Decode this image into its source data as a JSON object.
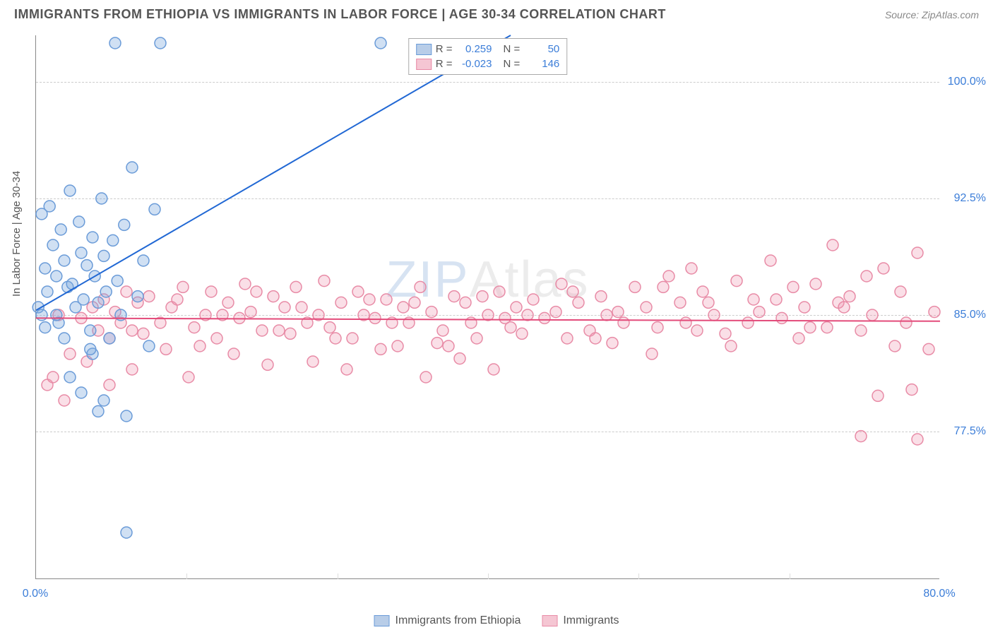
{
  "header": {
    "title": "IMMIGRANTS FROM ETHIOPIA VS IMMIGRANTS IN LABOR FORCE | AGE 30-34 CORRELATION CHART",
    "source": "Source: ZipAtlas.com"
  },
  "chart": {
    "type": "scatter",
    "ylabel": "In Labor Force | Age 30-34",
    "watermark_zip": "ZIP",
    "watermark_atlas": "Atlas",
    "background_color": "#ffffff",
    "grid_color": "#cccccc",
    "axis_color": "#888888",
    "xlim": [
      0,
      80
    ],
    "ylim": [
      68,
      103
    ],
    "xticks": [
      {
        "v": 0,
        "label": "0.0%"
      },
      {
        "v": 80,
        "label": "80.0%"
      }
    ],
    "xticks_minor": [
      13.3,
      26.7,
      40,
      53.3,
      66.7
    ],
    "yticks": [
      {
        "v": 77.5,
        "label": "77.5%"
      },
      {
        "v": 85.0,
        "label": "85.0%"
      },
      {
        "v": 92.5,
        "label": "92.5%"
      },
      {
        "v": 100.0,
        "label": "100.0%"
      }
    ],
    "series": [
      {
        "name": "Immigrants from Ethiopia",
        "color_fill": "rgba(120,165,220,0.35)",
        "color_stroke": "#6a9bd8",
        "swatch_fill": "#b8cde8",
        "swatch_stroke": "#6a9bd8",
        "marker_radius": 8,
        "regression": {
          "x1": 0,
          "y1": 85.3,
          "x2": 42,
          "y2": 103,
          "stroke": "#2168d4",
          "width": 2
        },
        "stats": {
          "R": "0.259",
          "N": "50"
        },
        "points": [
          [
            0.2,
            85.5
          ],
          [
            0.5,
            91.5
          ],
          [
            0.8,
            88.0
          ],
          [
            1.0,
            86.5
          ],
          [
            1.2,
            92.0
          ],
          [
            1.5,
            89.5
          ],
          [
            1.8,
            87.5
          ],
          [
            2.0,
            84.5
          ],
          [
            2.2,
            90.5
          ],
          [
            2.5,
            88.5
          ],
          [
            2.8,
            86.8
          ],
          [
            3.0,
            93.0
          ],
          [
            3.2,
            87.0
          ],
          [
            3.5,
            85.5
          ],
          [
            3.8,
            91.0
          ],
          [
            4.0,
            89.0
          ],
          [
            4.2,
            86.0
          ],
          [
            4.5,
            88.2
          ],
          [
            4.8,
            84.0
          ],
          [
            5.0,
            90.0
          ],
          [
            5.2,
            87.5
          ],
          [
            5.5,
            85.8
          ],
          [
            5.8,
            92.5
          ],
          [
            6.0,
            88.8
          ],
          [
            6.2,
            86.5
          ],
          [
            6.5,
            83.5
          ],
          [
            6.8,
            89.8
          ],
          [
            7.0,
            102.5
          ],
          [
            7.2,
            87.2
          ],
          [
            7.5,
            85.0
          ],
          [
            7.8,
            90.8
          ],
          [
            8.0,
            78.5
          ],
          [
            8.5,
            94.5
          ],
          [
            9.0,
            86.2
          ],
          [
            9.5,
            88.5
          ],
          [
            10.0,
            83.0
          ],
          [
            10.5,
            91.8
          ],
          [
            11.0,
            102.5
          ],
          [
            4.0,
            80.0
          ],
          [
            5.0,
            82.5
          ],
          [
            6.0,
            79.5
          ],
          [
            3.0,
            81.0
          ],
          [
            2.5,
            83.5
          ],
          [
            1.8,
            85.0
          ],
          [
            0.8,
            84.2
          ],
          [
            8.0,
            71.0
          ],
          [
            5.5,
            78.8
          ],
          [
            4.8,
            82.8
          ],
          [
            30.5,
            102.5
          ],
          [
            0.5,
            85.0
          ]
        ]
      },
      {
        "name": "Immigrants",
        "color_fill": "rgba(240,150,175,0.3)",
        "color_stroke": "#e88ba6",
        "swatch_fill": "#f5c6d3",
        "swatch_stroke": "#e88ba6",
        "marker_radius": 8,
        "regression": {
          "x1": 0,
          "y1": 84.8,
          "x2": 80,
          "y2": 84.6,
          "stroke": "#e34b7a",
          "width": 2
        },
        "stats": {
          "R": "-0.023",
          "N": "146"
        },
        "points": [
          [
            1.0,
            80.5
          ],
          [
            2.0,
            85.0
          ],
          [
            3.0,
            82.5
          ],
          [
            4.0,
            84.8
          ],
          [
            5.0,
            85.5
          ],
          [
            5.5,
            84.0
          ],
          [
            6.0,
            86.0
          ],
          [
            6.5,
            83.5
          ],
          [
            7.0,
            85.2
          ],
          [
            7.5,
            84.5
          ],
          [
            8.0,
            86.5
          ],
          [
            8.5,
            84.0
          ],
          [
            9.0,
            85.8
          ],
          [
            9.5,
            83.8
          ],
          [
            10.0,
            86.2
          ],
          [
            11.0,
            84.5
          ],
          [
            12.0,
            85.5
          ],
          [
            13.0,
            86.8
          ],
          [
            14.0,
            84.2
          ],
          [
            15.0,
            85.0
          ],
          [
            15.5,
            86.5
          ],
          [
            16.0,
            83.5
          ],
          [
            17.0,
            85.8
          ],
          [
            18.0,
            84.8
          ],
          [
            18.5,
            87.0
          ],
          [
            19.0,
            85.2
          ],
          [
            20.0,
            84.0
          ],
          [
            21.0,
            86.2
          ],
          [
            22.0,
            85.5
          ],
          [
            22.5,
            83.8
          ],
          [
            23.0,
            86.8
          ],
          [
            24.0,
            84.5
          ],
          [
            25.0,
            85.0
          ],
          [
            25.5,
            87.2
          ],
          [
            26.0,
            84.2
          ],
          [
            27.0,
            85.8
          ],
          [
            28.0,
            83.5
          ],
          [
            28.5,
            86.5
          ],
          [
            29.0,
            85.0
          ],
          [
            30.0,
            84.8
          ],
          [
            31.0,
            86.0
          ],
          [
            32.0,
            83.0
          ],
          [
            32.5,
            85.5
          ],
          [
            33.0,
            84.5
          ],
          [
            34.0,
            86.8
          ],
          [
            35.0,
            85.2
          ],
          [
            35.5,
            83.2
          ],
          [
            36.0,
            84.0
          ],
          [
            37.0,
            86.2
          ],
          [
            38.0,
            85.8
          ],
          [
            38.5,
            84.5
          ],
          [
            39.0,
            83.5
          ],
          [
            40.0,
            85.0
          ],
          [
            41.0,
            86.5
          ],
          [
            42.0,
            84.2
          ],
          [
            42.5,
            85.5
          ],
          [
            43.0,
            83.8
          ],
          [
            44.0,
            86.0
          ],
          [
            45.0,
            84.8
          ],
          [
            46.0,
            85.2
          ],
          [
            46.5,
            87.0
          ],
          [
            47.0,
            83.5
          ],
          [
            48.0,
            85.8
          ],
          [
            49.0,
            84.0
          ],
          [
            50.0,
            86.2
          ],
          [
            50.5,
            85.0
          ],
          [
            51.0,
            83.2
          ],
          [
            52.0,
            84.5
          ],
          [
            53.0,
            86.8
          ],
          [
            54.0,
            85.5
          ],
          [
            54.5,
            82.5
          ],
          [
            55.0,
            84.2
          ],
          [
            56.0,
            87.5
          ],
          [
            57.0,
            85.8
          ],
          [
            58.0,
            88.0
          ],
          [
            58.5,
            84.0
          ],
          [
            59.0,
            86.5
          ],
          [
            60.0,
            85.0
          ],
          [
            61.0,
            83.8
          ],
          [
            62.0,
            87.2
          ],
          [
            63.0,
            84.5
          ],
          [
            63.5,
            86.0
          ],
          [
            64.0,
            85.2
          ],
          [
            65.0,
            88.5
          ],
          [
            66.0,
            84.8
          ],
          [
            67.0,
            86.8
          ],
          [
            67.5,
            83.5
          ],
          [
            68.0,
            85.5
          ],
          [
            69.0,
            87.0
          ],
          [
            70.0,
            84.2
          ],
          [
            70.5,
            89.5
          ],
          [
            71.0,
            85.8
          ],
          [
            72.0,
            86.2
          ],
          [
            73.0,
            84.0
          ],
          [
            73.5,
            87.5
          ],
          [
            74.0,
            85.0
          ],
          [
            75.0,
            88.0
          ],
          [
            76.0,
            83.0
          ],
          [
            76.5,
            86.5
          ],
          [
            77.0,
            84.5
          ],
          [
            78.0,
            89.0
          ],
          [
            79.0,
            82.8
          ],
          [
            79.5,
            85.2
          ],
          [
            1.5,
            81.0
          ],
          [
            12.5,
            86.0
          ],
          [
            14.5,
            83.0
          ],
          [
            16.5,
            85.0
          ],
          [
            19.5,
            86.5
          ],
          [
            21.5,
            84.0
          ],
          [
            23.5,
            85.5
          ],
          [
            26.5,
            83.5
          ],
          [
            29.5,
            86.0
          ],
          [
            31.5,
            84.5
          ],
          [
            33.5,
            85.8
          ],
          [
            36.5,
            83.0
          ],
          [
            39.5,
            86.2
          ],
          [
            41.5,
            84.8
          ],
          [
            43.5,
            85.0
          ],
          [
            47.5,
            86.5
          ],
          [
            49.5,
            83.5
          ],
          [
            51.5,
            85.2
          ],
          [
            55.5,
            86.8
          ],
          [
            57.5,
            84.5
          ],
          [
            59.5,
            85.8
          ],
          [
            61.5,
            83.0
          ],
          [
            65.5,
            86.0
          ],
          [
            68.5,
            84.2
          ],
          [
            71.5,
            85.5
          ],
          [
            74.5,
            79.8
          ],
          [
            77.5,
            80.2
          ],
          [
            73.0,
            77.2
          ],
          [
            78.0,
            77.0
          ],
          [
            2.5,
            79.5
          ],
          [
            4.5,
            82.0
          ],
          [
            6.5,
            80.5
          ],
          [
            8.5,
            81.5
          ],
          [
            11.5,
            82.8
          ],
          [
            13.5,
            81.0
          ],
          [
            17.5,
            82.5
          ],
          [
            20.5,
            81.8
          ],
          [
            24.5,
            82.0
          ],
          [
            27.5,
            81.5
          ],
          [
            30.5,
            82.8
          ],
          [
            34.5,
            81.0
          ],
          [
            37.5,
            82.2
          ],
          [
            40.5,
            81.5
          ]
        ]
      }
    ],
    "legend_bottom": [
      {
        "swatch_fill": "#b8cde8",
        "swatch_stroke": "#6a9bd8",
        "label": "Immigrants from Ethiopia"
      },
      {
        "swatch_fill": "#f5c6d3",
        "swatch_stroke": "#e88ba6",
        "label": "Immigrants"
      }
    ],
    "legend_top_labels": {
      "R": "R =",
      "N": "N ="
    }
  }
}
